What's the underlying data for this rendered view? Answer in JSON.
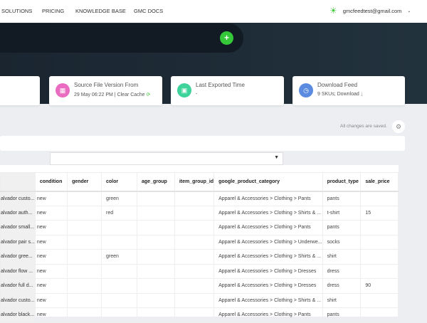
{
  "nav": {
    "items": [
      "SOLUTIONS",
      "PRICING",
      "KNOWLEDGE BASE",
      "GMC DOCS"
    ],
    "user_email": "gmcfeedtest@gmail.com"
  },
  "cards": [
    {
      "title": "Source File Version From",
      "sub": "29 May 06:22 PM | Clear Cache",
      "color": "#e96cc0",
      "icon": "file-icon"
    },
    {
      "title": "Last Exported Time",
      "sub": "-",
      "color": "#3ed39a",
      "icon": "calendar-icon"
    },
    {
      "title": "Download Feed",
      "sub": "9 SKUs; Download",
      "color": "#5b8be0",
      "icon": "clock-icon"
    }
  ],
  "status": {
    "saved": "All changes are saved."
  },
  "table": {
    "columns": [
      "",
      "condition",
      "gender",
      "color",
      "age_group",
      "item_group_id",
      "google_product_category",
      "product_type",
      "sale_price"
    ],
    "rows": [
      [
        "alvador custo...",
        "new",
        "",
        "green",
        "",
        "",
        "Apparel & Accessories > Clothing > Pants",
        "pants",
        ""
      ],
      [
        "alvador auth...",
        "new",
        "",
        "red",
        "",
        "",
        "Apparel & Accessories > Clothing > Shirts & ...",
        "t-shirt",
        "15"
      ],
      [
        "alvador small...",
        "new",
        "",
        "",
        "",
        "",
        "Apparel & Accessories > Clothing > Pants",
        "pants",
        ""
      ],
      [
        "alvador pair s...",
        "new",
        "",
        "",
        "",
        "",
        "Apparel & Accessories > Clothing > Underwe...",
        "socks",
        ""
      ],
      [
        "alvador gree...",
        "new",
        "",
        "green",
        "",
        "",
        "Apparel & Accessories > Clothing > Shirts & ...",
        "shirt",
        ""
      ],
      [
        "alvador flow ...",
        "new",
        "",
        "",
        "",
        "",
        "Apparel & Accessories > Clothing > Dresses",
        "dress",
        ""
      ],
      [
        "alvador full d...",
        "new",
        "",
        "",
        "",
        "",
        "Apparel & Accessories > Clothing > Dresses",
        "dress",
        "90"
      ],
      [
        "alvador custo...",
        "new",
        "",
        "",
        "",
        "",
        "Apparel & Accessories > Clothing > Shirts & ...",
        "shirt",
        ""
      ],
      [
        "alvador black...",
        "new",
        "",
        "",
        "",
        "",
        "Apparel & Accessories > Clothing > Pants",
        "pants",
        ""
      ]
    ]
  }
}
